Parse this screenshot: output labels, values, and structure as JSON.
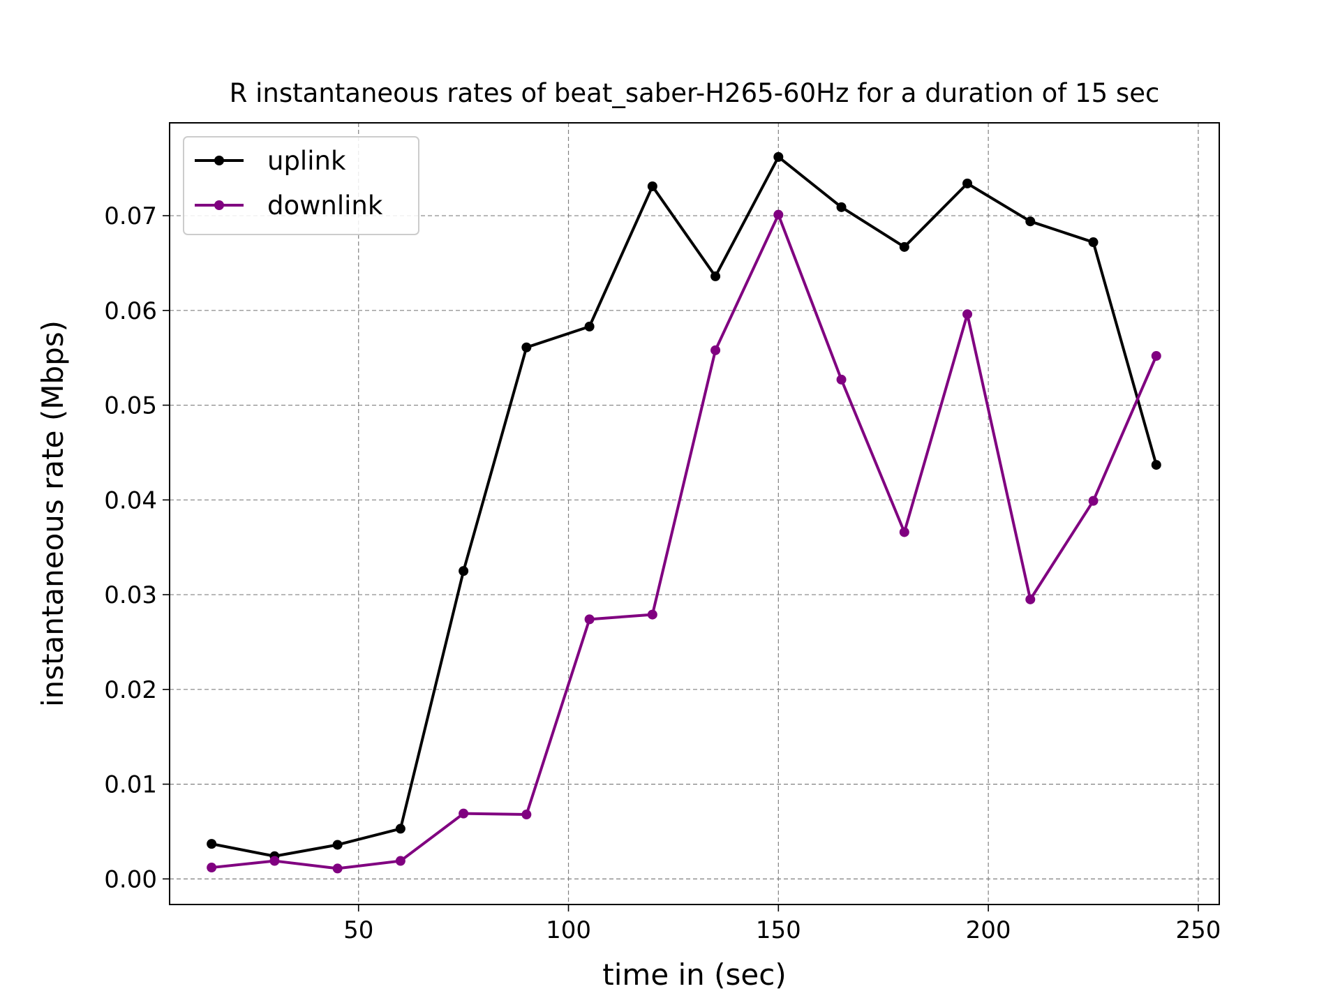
{
  "chart_data": {
    "type": "line",
    "title": "R instantaneous rates of beat_saber-H265-60Hz for a duration of 15 sec",
    "xlabel": "time in (sec)",
    "ylabel": "instantaneous rate (Mbps)",
    "xlim": [
      5,
      255
    ],
    "ylim": [
      -0.0027,
      0.0798
    ],
    "xticks": [
      50,
      100,
      150,
      200,
      250
    ],
    "xtick_labels": [
      "50",
      "100",
      "150",
      "200",
      "250"
    ],
    "yticks": [
      0.0,
      0.01,
      0.02,
      0.03,
      0.04,
      0.05,
      0.06,
      0.07
    ],
    "ytick_labels": [
      "0.00",
      "0.01",
      "0.02",
      "0.03",
      "0.04",
      "0.05",
      "0.06",
      "0.07"
    ],
    "grid": true,
    "legend_position": "top-left",
    "x": [
      15,
      30,
      45,
      60,
      75,
      90,
      105,
      120,
      135,
      150,
      165,
      180,
      195,
      210,
      225,
      240
    ],
    "series": [
      {
        "name": "uplink",
        "color": "#000000",
        "values": [
          0.0037,
          0.0024,
          0.0036,
          0.0053,
          0.0325,
          0.0561,
          0.0583,
          0.0731,
          0.0636,
          0.0762,
          0.0709,
          0.0667,
          0.0734,
          0.0694,
          0.0672,
          0.0437
        ]
      },
      {
        "name": "downlink",
        "color": "#800080",
        "values": [
          0.0012,
          0.0019,
          0.0011,
          0.0019,
          0.0069,
          0.0068,
          0.0274,
          0.0279,
          0.0558,
          0.0701,
          0.0527,
          0.0366,
          0.0596,
          0.0295,
          0.0399,
          0.0552
        ]
      }
    ]
  }
}
